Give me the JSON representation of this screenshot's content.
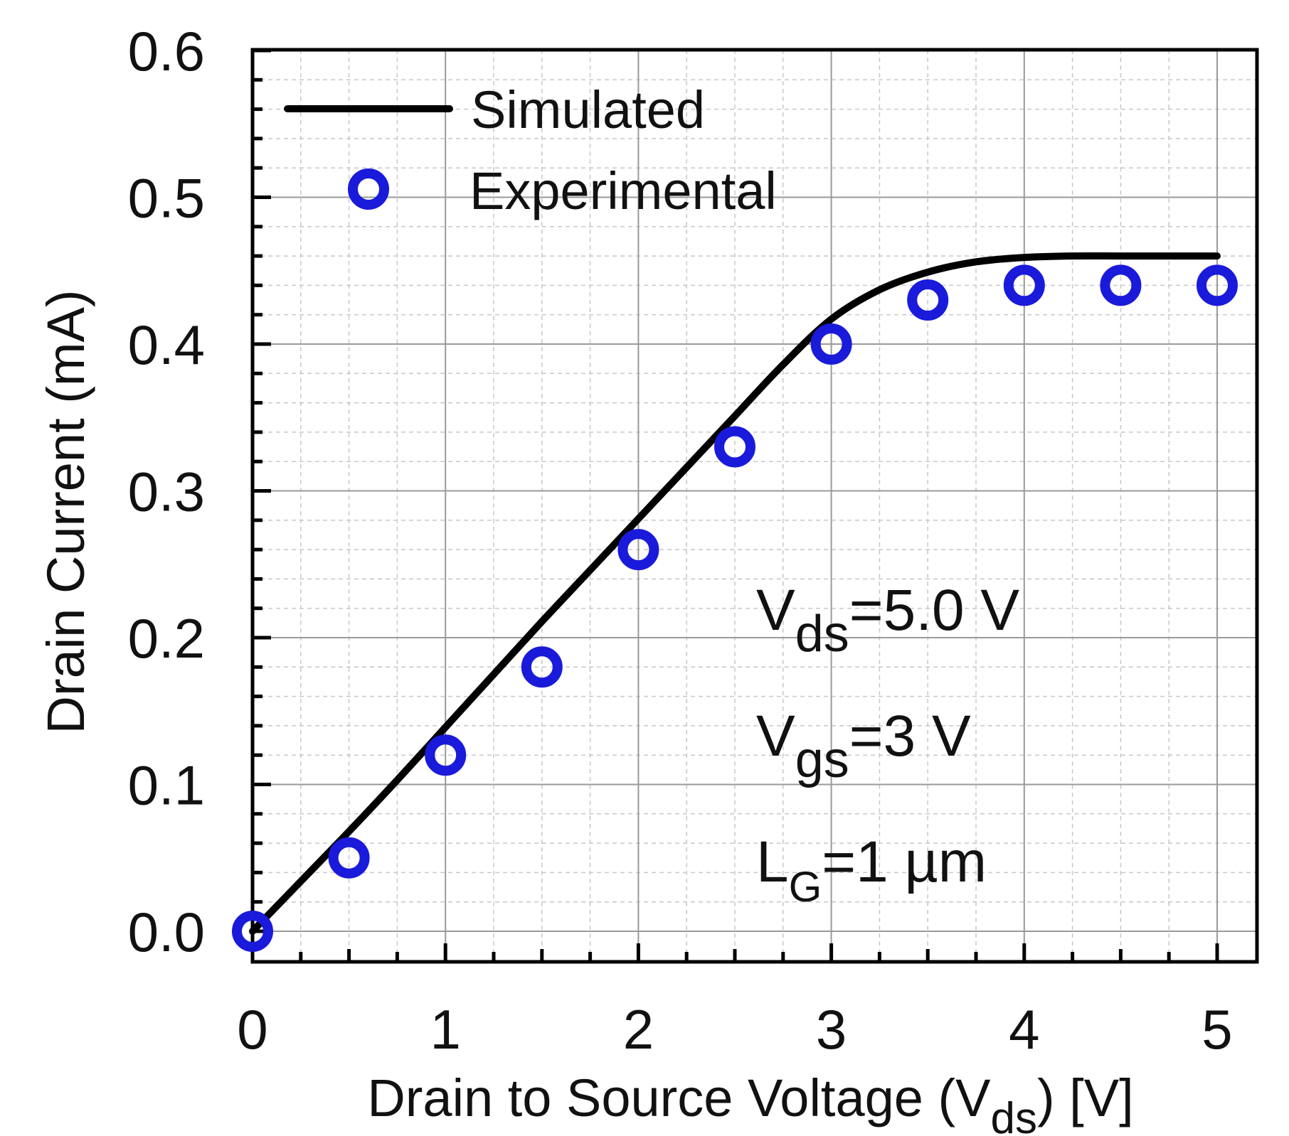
{
  "chart_data": {
    "type": "line",
    "xlabel": {
      "main": "Drain to Source Voltage (V",
      "sub": "ds",
      "tail": ") [V]"
    },
    "ylabel": "Drain Current (mA)",
    "xlim": [
      0,
      5.2
    ],
    "ylim": [
      -0.02,
      0.6
    ],
    "x_ticks": [
      0,
      1,
      2,
      3,
      4,
      5
    ],
    "x_tick_labels": [
      "0",
      "1",
      "2",
      "3",
      "4",
      "5"
    ],
    "y_ticks": [
      0.0,
      0.1,
      0.2,
      0.3,
      0.4,
      0.5,
      0.6
    ],
    "y_tick_labels": [
      "0.0",
      "0.1",
      "0.2",
      "0.3",
      "0.4",
      "0.5",
      "0.6"
    ],
    "grid": true,
    "legend_position": "top-left",
    "series": [
      {
        "name": "Simulated",
        "style": "line",
        "color": "#000000",
        "x": [
          0,
          0.25,
          0.5,
          0.75,
          1.0,
          1.25,
          1.5,
          1.75,
          2.0,
          2.25,
          2.5,
          2.75,
          3.0,
          3.25,
          3.5,
          3.75,
          4.0,
          4.25,
          4.5,
          4.75,
          5.0
        ],
        "y": [
          0.0,
          0.034,
          0.068,
          0.103,
          0.139,
          0.175,
          0.211,
          0.246,
          0.281,
          0.316,
          0.351,
          0.386,
          0.417,
          0.437,
          0.449,
          0.456,
          0.459,
          0.46,
          0.46,
          0.46,
          0.46
        ]
      },
      {
        "name": "Experimental",
        "style": "marker",
        "color": "#1a1adb",
        "x": [
          0,
          0.5,
          1.0,
          1.5,
          2.0,
          2.5,
          3.0,
          3.5,
          4.0,
          4.5,
          5.0
        ],
        "y": [
          0.0,
          0.05,
          0.12,
          0.18,
          0.26,
          0.33,
          0.4,
          0.43,
          0.44,
          0.44,
          0.44
        ]
      }
    ],
    "annotations": [
      {
        "main": "V",
        "sub": "ds",
        "tail": "=5.0 V"
      },
      {
        "main": "V",
        "sub": "gs",
        "tail": "=3 V"
      },
      {
        "main": "L",
        "sub": "G",
        "tail": "=1 µm"
      }
    ]
  }
}
